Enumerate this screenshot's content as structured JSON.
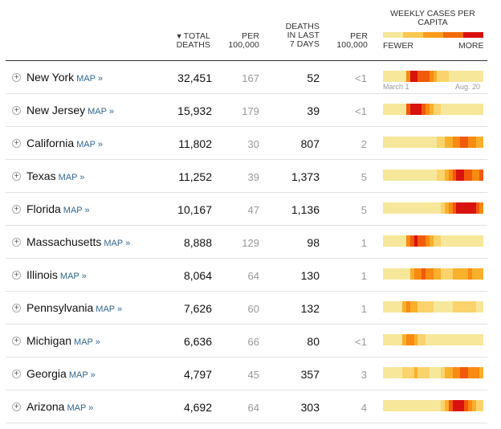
{
  "header": {
    "total_deaths_line1": "TOTAL",
    "total_deaths_line2": "DEATHS",
    "sort_arrow": "▼",
    "per1_line1": "PER",
    "per1_line2": "100,000",
    "deaths7_line1": "DEATHS",
    "deaths7_line2": "IN LAST",
    "deaths7_line3": "7 DAYS",
    "per2_line1": "PER",
    "per2_line2": "100,000",
    "weekly_title": "WEEKLY CASES PER CAPITA",
    "legend_fewer": "FEWER",
    "legend_more": "MORE",
    "legend_colors": [
      "#f6e79b",
      "#f9c74f",
      "#fb9b1c",
      "#f26b0a",
      "#d7100c"
    ]
  },
  "axis": {
    "start": "March 1",
    "end": "Aug. 20"
  },
  "map_link_label": "MAP »",
  "palette": [
    "#f6e79b",
    "#fad36c",
    "#f9b02c",
    "#f98a12",
    "#f05a0a",
    "#d8120c"
  ],
  "rows": [
    {
      "state": "New York",
      "total": "32,451",
      "per1": "167",
      "deaths7": "52",
      "per2": "<1",
      "weekly": [
        0,
        0,
        0,
        0,
        0,
        0,
        3,
        5,
        5,
        4,
        4,
        4,
        3,
        2,
        1,
        1,
        1,
        0,
        0,
        0,
        0,
        0,
        0,
        0,
        0,
        0
      ]
    },
    {
      "state": "New Jersey",
      "total": "15,932",
      "per1": "179",
      "deaths7": "39",
      "per2": "<1",
      "weekly": [
        0,
        0,
        0,
        0,
        0,
        0,
        4,
        5,
        5,
        5,
        4,
        3,
        2,
        1,
        1,
        0,
        0,
        0,
        0,
        0,
        0,
        0,
        0,
        0,
        0,
        0
      ]
    },
    {
      "state": "California",
      "total": "11,802",
      "per1": "30",
      "deaths7": "807",
      "per2": "2",
      "weekly": [
        0,
        0,
        0,
        0,
        0,
        0,
        0,
        0,
        0,
        0,
        0,
        0,
        0,
        0,
        1,
        1,
        2,
        2,
        3,
        3,
        4,
        4,
        3,
        3,
        2,
        2
      ]
    },
    {
      "state": "Texas",
      "total": "11,252",
      "per1": "39",
      "deaths7": "1,373",
      "per2": "5",
      "weekly": [
        0,
        0,
        0,
        0,
        0,
        0,
        0,
        0,
        0,
        0,
        0,
        0,
        0,
        0,
        1,
        1,
        2,
        3,
        4,
        5,
        5,
        4,
        4,
        3,
        3,
        4
      ]
    },
    {
      "state": "Florida",
      "total": "10,167",
      "per1": "47",
      "deaths7": "1,136",
      "per2": "5",
      "weekly": [
        0,
        0,
        0,
        0,
        0,
        0,
        0,
        0,
        0,
        0,
        0,
        0,
        0,
        0,
        0,
        1,
        2,
        3,
        4,
        5,
        5,
        5,
        5,
        5,
        4,
        3
      ]
    },
    {
      "state": "Massachusetts",
      "total": "8,888",
      "per1": "129",
      "deaths7": "98",
      "per2": "1",
      "weekly": [
        0,
        0,
        0,
        0,
        0,
        0,
        3,
        4,
        5,
        4,
        4,
        3,
        2,
        1,
        1,
        0,
        0,
        0,
        0,
        0,
        0,
        0,
        0,
        0,
        0,
        0
      ]
    },
    {
      "state": "Illinois",
      "total": "8,064",
      "per1": "64",
      "deaths7": "130",
      "per2": "1",
      "weekly": [
        0,
        0,
        0,
        0,
        0,
        0,
        0,
        2,
        3,
        3,
        4,
        3,
        3,
        2,
        2,
        1,
        1,
        1,
        2,
        2,
        2,
        2,
        3,
        2,
        2,
        2
      ]
    },
    {
      "state": "Pennsylvania",
      "total": "7,626",
      "per1": "60",
      "deaths7": "132",
      "per2": "1",
      "weekly": [
        0,
        0,
        0,
        0,
        0,
        2,
        3,
        2,
        2,
        1,
        1,
        1,
        1,
        0,
        0,
        0,
        0,
        0,
        1,
        1,
        1,
        1,
        1,
        1,
        0,
        0
      ]
    },
    {
      "state": "Michigan",
      "total": "6,636",
      "per1": "66",
      "deaths7": "80",
      "per2": "<1",
      "weekly": [
        0,
        0,
        0,
        0,
        0,
        2,
        3,
        3,
        2,
        1,
        1,
        0,
        0,
        0,
        0,
        0,
        0,
        0,
        0,
        0,
        0,
        0,
        0,
        0,
        0,
        0
      ]
    },
    {
      "state": "Georgia",
      "total": "4,797",
      "per1": "45",
      "deaths7": "357",
      "per2": "3",
      "weekly": [
        0,
        0,
        0,
        0,
        0,
        1,
        1,
        1,
        2,
        1,
        1,
        1,
        0,
        0,
        0,
        1,
        2,
        2,
        3,
        3,
        4,
        4,
        3,
        3,
        3,
        2
      ]
    },
    {
      "state": "Arizona",
      "total": "4,692",
      "per1": "64",
      "deaths7": "303",
      "per2": "4",
      "weekly": [
        0,
        0,
        0,
        0,
        0,
        0,
        0,
        0,
        0,
        0,
        0,
        0,
        0,
        0,
        0,
        1,
        2,
        4,
        5,
        5,
        5,
        4,
        3,
        2,
        1,
        1
      ]
    }
  ]
}
